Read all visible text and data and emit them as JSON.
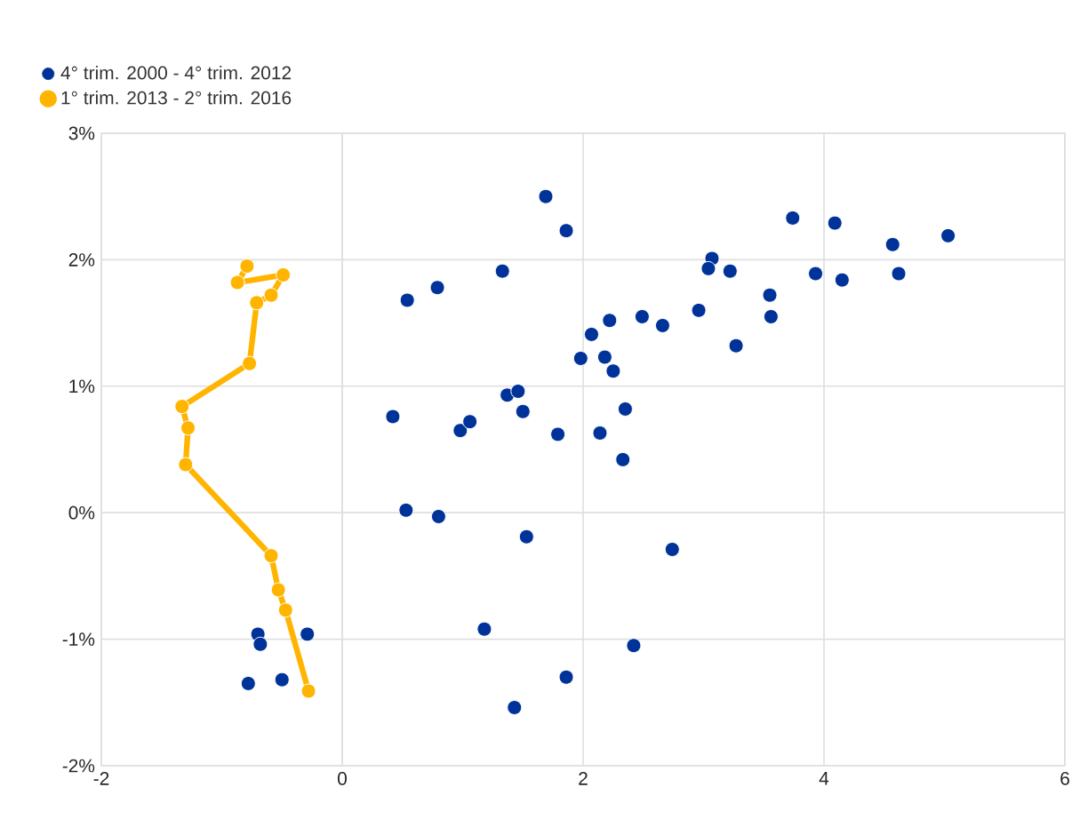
{
  "chart_data": {
    "type": "scatter",
    "xlim": [
      -2,
      6
    ],
    "ylim": [
      -2,
      3
    ],
    "xticks": [
      -2,
      0,
      2,
      4,
      6
    ],
    "yticks": [
      {
        "value": -2,
        "label": "-2%"
      },
      {
        "value": -1,
        "label": "-1%"
      },
      {
        "value": 0,
        "label": "0%"
      },
      {
        "value": 1,
        "label": "1%"
      },
      {
        "value": 2,
        "label": "2%"
      },
      {
        "value": 3,
        "label": "3%"
      }
    ],
    "grid": true,
    "legend": "top left",
    "marker": "circle",
    "series": [
      {
        "name": "4° trim. 2000 - 4° trim. 2012",
        "color": "#003399",
        "x": [
          1.69,
          1.86,
          1.33,
          0.54,
          0.79,
          2.22,
          2.07,
          2.49,
          2.66,
          2.96,
          1.98,
          2.18,
          2.25,
          1.37,
          1.46,
          1.5,
          0.42,
          0.98,
          1.06,
          1.79,
          2.14,
          2.35,
          2.33,
          0.53,
          0.8,
          1.53,
          2.74,
          1.18,
          2.42,
          1.86,
          1.43,
          3.07,
          3.04,
          3.22,
          3.55,
          3.56,
          3.27,
          3.74,
          4.09,
          3.93,
          4.15,
          4.57,
          4.62,
          5.03,
          -0.7,
          -0.68,
          -0.29,
          -0.78,
          -0.5
        ],
        "values": [
          2.5,
          2.23,
          1.91,
          1.68,
          1.78,
          1.52,
          1.41,
          1.55,
          1.48,
          1.6,
          1.22,
          1.23,
          1.12,
          0.93,
          0.96,
          0.8,
          0.76,
          0.65,
          0.72,
          0.62,
          0.63,
          0.82,
          0.42,
          0.02,
          -0.03,
          -0.19,
          -0.29,
          -0.92,
          -1.05,
          -1.3,
          -1.54,
          2.01,
          1.93,
          1.91,
          1.72,
          1.55,
          1.32,
          2.33,
          2.29,
          1.89,
          1.84,
          2.12,
          1.89,
          2.19,
          -0.96,
          -1.04,
          -0.96,
          -1.35,
          -1.32
        ]
      },
      {
        "name": "1° trim. 2013 - 2° trim. 2016",
        "color": "#ffb400",
        "type": "line",
        "x": [
          -0.79,
          -0.87,
          -0.49,
          -0.59,
          -0.71,
          -0.77,
          -1.33,
          -1.28,
          -1.3,
          -0.59,
          -0.53,
          -0.47,
          -0.28
        ],
        "values": [
          1.95,
          1.82,
          1.88,
          1.72,
          1.66,
          1.18,
          0.84,
          0.67,
          0.38,
          -0.34,
          -0.61,
          -0.77,
          -1.41
        ]
      }
    ]
  }
}
